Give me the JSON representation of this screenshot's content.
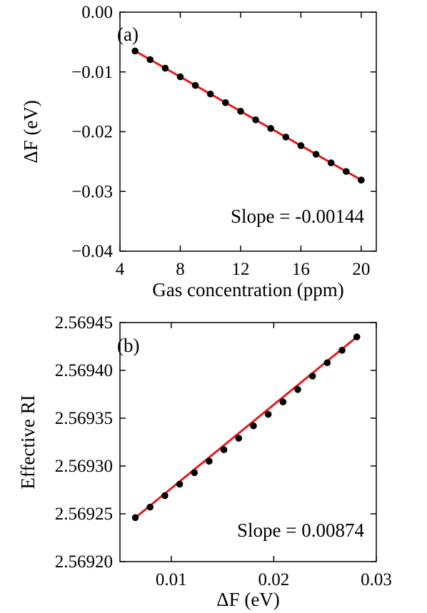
{
  "chart_data": [
    {
      "type": "line",
      "panel_label": "(a)",
      "xlabel": "Gas concentration (ppm)",
      "ylabel": "ΔF (eV)",
      "xlim": [
        4,
        21
      ],
      "ylim": [
        -0.04,
        0.0
      ],
      "xticks": [
        4,
        8,
        12,
        16,
        20
      ],
      "xtick_labels": [
        "4",
        "8",
        "12",
        "16",
        "20"
      ],
      "yticks": [
        0.0,
        -0.01,
        -0.02,
        -0.03,
        -0.04
      ],
      "ytick_labels": [
        "0.00",
        "−0.01",
        "−0.02",
        "−0.03",
        "−0.04"
      ],
      "annotation": "Slope = -0.00144",
      "grid": false,
      "colors": {
        "fit": "#e41a1c",
        "points": "#000000"
      },
      "points": {
        "x": [
          5,
          6,
          7,
          8,
          9,
          10,
          11,
          12,
          13,
          14,
          15,
          16,
          17,
          18,
          19,
          20
        ],
        "y": [
          -0.0065,
          -0.00794,
          -0.00938,
          -0.01082,
          -0.01226,
          -0.0137,
          -0.01514,
          -0.01658,
          -0.01802,
          -0.01946,
          -0.0209,
          -0.02234,
          -0.02378,
          -0.02522,
          -0.02666,
          -0.0281
        ]
      },
      "fit": {
        "x": [
          5,
          20
        ],
        "y": [
          -0.0065,
          -0.0281
        ]
      }
    },
    {
      "type": "line",
      "panel_label": "(b)",
      "xlabel": "ΔF (eV)",
      "ylabel": "Effective RI",
      "xlim": [
        0.005,
        0.03
      ],
      "ylim": [
        2.5692,
        2.56945
      ],
      "xticks": [
        0.01,
        0.02,
        0.03
      ],
      "xtick_labels": [
        "0.01",
        "0.02",
        "0.03"
      ],
      "yticks": [
        2.5692,
        2.56925,
        2.5693,
        2.56935,
        2.5694,
        2.56945
      ],
      "ytick_labels": [
        "2.56920",
        "2.56925",
        "2.56930",
        "2.56935",
        "2.56940",
        "2.56945"
      ],
      "annotation": "Slope = 0.00874",
      "grid": false,
      "colors": {
        "fit": "#e41a1c",
        "points": "#000000"
      },
      "points": {
        "x": [
          0.0065,
          0.00794,
          0.00938,
          0.01082,
          0.01226,
          0.0137,
          0.01514,
          0.01658,
          0.01802,
          0.01946,
          0.0209,
          0.02234,
          0.02378,
          0.02522,
          0.02666,
          0.0281
        ],
        "y": [
          2.569246,
          2.569257,
          2.569269,
          2.569281,
          2.569293,
          2.569305,
          2.569317,
          2.569329,
          2.569342,
          2.569354,
          2.569367,
          2.56938,
          2.569394,
          2.569408,
          2.569421,
          2.569435
        ]
      },
      "fit": {
        "x": [
          0.0065,
          0.0281
        ],
        "y": [
          2.569246,
          2.569435
        ]
      }
    }
  ]
}
